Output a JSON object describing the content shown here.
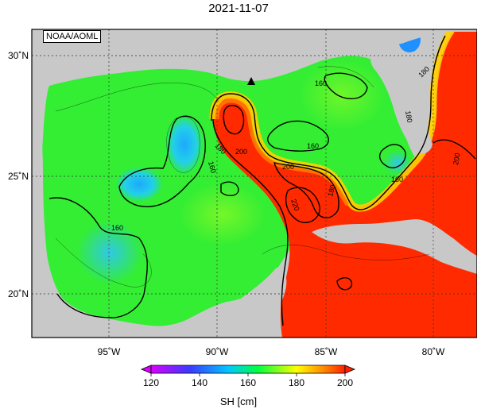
{
  "title": "2021-11-07",
  "credit": "NOAA/AOML",
  "lon_ticks": [
    "95˚W",
    "90˚W",
    "85˚W",
    "80˚W"
  ],
  "lat_ticks": [
    "30˚N",
    "25˚N",
    "20˚N"
  ],
  "contour_labels": [
    "160",
    "160",
    "180",
    "200",
    "160",
    "180",
    "200",
    "220",
    "180",
    "160",
    "200",
    "180",
    "160"
  ],
  "colorbar": {
    "ticks": [
      "120",
      "140",
      "160",
      "180",
      "200"
    ],
    "label": "SH [cm]",
    "colors": [
      "#d800ff",
      "#3a3aff",
      "#00c8ff",
      "#00ff40",
      "#ffff00",
      "#ff2000"
    ]
  },
  "colors": {
    "land": "#c8c8c8",
    "warm": "#ff2a00",
    "mid": "#33ee33",
    "cool": "#22c8e8"
  }
}
